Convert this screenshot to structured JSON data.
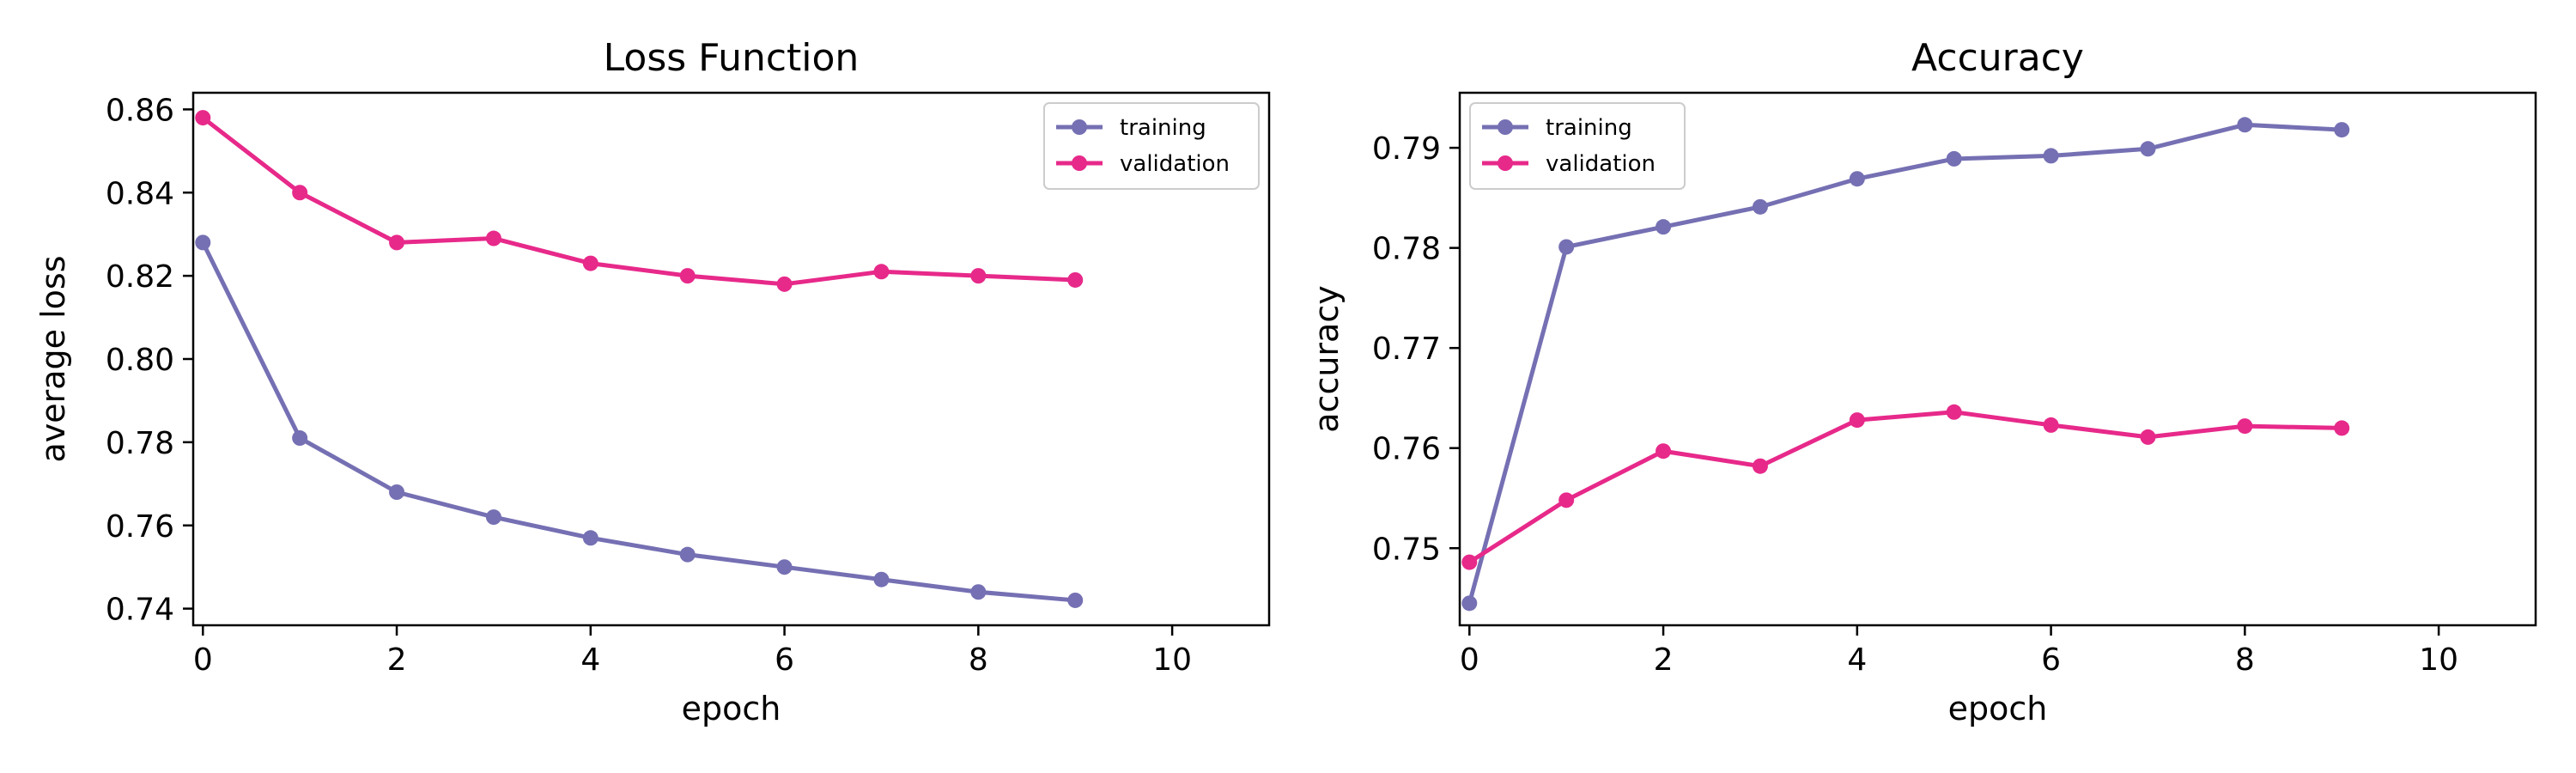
{
  "colors": {
    "training": "#7570b3",
    "validation": "#e7298a"
  },
  "chart_data": [
    {
      "type": "line",
      "title": "Loss Function",
      "xlabel": "epoch",
      "ylabel": "average loss",
      "xlim": [
        -0.1,
        11
      ],
      "ylim": [
        0.736,
        0.864
      ],
      "xticks": [
        0,
        2,
        4,
        6,
        8,
        10
      ],
      "yticks": [
        0.74,
        0.76,
        0.78,
        0.8,
        0.82,
        0.84,
        0.86
      ],
      "ytick_labels": [
        "0.74",
        "0.76",
        "0.78",
        "0.80",
        "0.82",
        "0.84",
        "0.86"
      ],
      "grid": false,
      "legend": "upper right",
      "x": [
        0,
        1,
        2,
        3,
        4,
        5,
        6,
        7,
        8,
        9
      ],
      "series": [
        {
          "name": "training",
          "values": [
            0.828,
            0.781,
            0.768,
            0.762,
            0.757,
            0.753,
            0.75,
            0.747,
            0.744,
            0.742
          ]
        },
        {
          "name": "validation",
          "values": [
            0.858,
            0.84,
            0.828,
            0.829,
            0.823,
            0.82,
            0.818,
            0.821,
            0.82,
            0.819
          ]
        }
      ]
    },
    {
      "type": "line",
      "title": "Accuracy",
      "xlabel": "epoch",
      "ylabel": "accuracy",
      "xlim": [
        -0.1,
        11
      ],
      "ylim": [
        0.7423,
        0.7955
      ],
      "xticks": [
        0,
        2,
        4,
        6,
        8,
        10
      ],
      "yticks": [
        0.75,
        0.76,
        0.77,
        0.78,
        0.79
      ],
      "ytick_labels": [
        "0.75",
        "0.76",
        "0.77",
        "0.78",
        "0.79"
      ],
      "grid": false,
      "legend": "upper left",
      "x": [
        0,
        1,
        2,
        3,
        4,
        5,
        6,
        7,
        8,
        9
      ],
      "series": [
        {
          "name": "training",
          "values": [
            0.7445,
            0.7801,
            0.7821,
            0.7841,
            0.7869,
            0.7889,
            0.7892,
            0.7899,
            0.7923,
            0.7918
          ]
        },
        {
          "name": "validation",
          "values": [
            0.7486,
            0.7548,
            0.7597,
            0.7582,
            0.7628,
            0.7636,
            0.7623,
            0.7611,
            0.7622,
            0.762
          ]
        }
      ]
    }
  ]
}
